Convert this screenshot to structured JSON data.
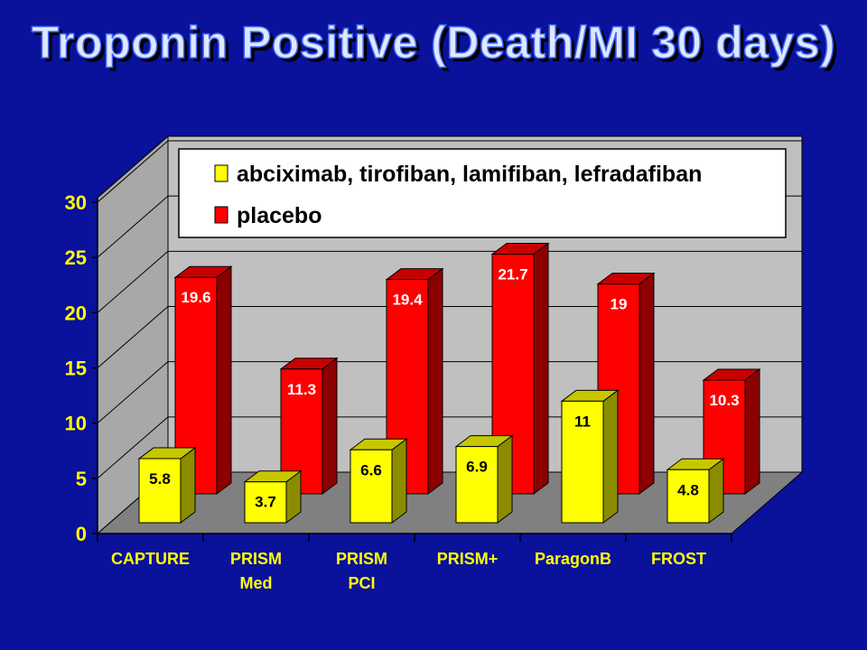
{
  "slide": {
    "title": "Troponin Positive (Death/MI 30 days)"
  },
  "colors": {
    "background": "#0a119a",
    "title_text": "#dfe8ff",
    "series_treatment": "#ffff00",
    "series_placebo": "#ff0000",
    "wall": "#c0c0c0",
    "floor": "#808080"
  },
  "chart_data": {
    "type": "bar",
    "title": "",
    "xlabel": "",
    "ylabel": "",
    "ylim": [
      0,
      30
    ],
    "yticks": [
      0,
      5,
      10,
      15,
      20,
      25,
      30
    ],
    "grid": true,
    "legend_placement": "top",
    "categories": [
      [
        "CAPTURE"
      ],
      [
        "PRISM",
        "Med"
      ],
      [
        "PRISM",
        "PCI"
      ],
      [
        "PRISM+"
      ],
      [
        "ParagonB"
      ],
      [
        "FROST"
      ]
    ],
    "series": [
      {
        "name": "abciximab, tirofiban, lamifiban, lefradafiban",
        "color": "#ffff00",
        "values": [
          5.8,
          3.7,
          6.6,
          6.9,
          11,
          4.8
        ],
        "labels": [
          "5.8",
          "3.7",
          "6.6",
          "6.9",
          "11",
          "4.8"
        ]
      },
      {
        "name": "placebo",
        "color": "#ff0000",
        "values": [
          19.6,
          11.3,
          19.4,
          21.7,
          19,
          10.3
        ],
        "labels": [
          "19.6",
          "11.3",
          "19.4",
          "21.7",
          "19",
          "10.3"
        ]
      }
    ]
  }
}
